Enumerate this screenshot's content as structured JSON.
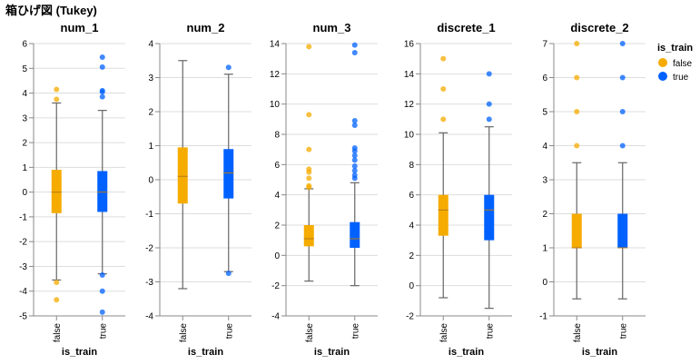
{
  "chart_data": {
    "type": "boxplot",
    "title": "箱ひげ図 (Tukey)",
    "legend": {
      "title": "is_train",
      "position": "top-right",
      "entries": [
        {
          "label": "false",
          "color": "#f5ab00"
        },
        {
          "label": "true",
          "color": "#0061ff"
        }
      ]
    },
    "xlabel": "is_train",
    "categories": [
      "false",
      "true"
    ],
    "colors": {
      "false": "#f5ab00",
      "true": "#0061ff"
    },
    "panels": [
      {
        "title": "num_1",
        "ylim": [
          -5,
          6
        ],
        "yticks": [
          -5,
          -4,
          -3,
          -2,
          -1,
          0,
          1,
          2,
          3,
          4,
          5,
          6
        ],
        "series": [
          {
            "name": "false",
            "whisker_low": -3.55,
            "q1": -0.85,
            "median": 0.0,
            "q3": 0.9,
            "whisker_high": 3.6,
            "outliers": [
              4.15,
              3.75,
              -3.65,
              -4.35
            ]
          },
          {
            "name": "true",
            "whisker_low": -3.3,
            "q1": -0.8,
            "median": 0.0,
            "q3": 0.85,
            "whisker_high": 3.3,
            "outliers": [
              5.45,
              5.05,
              4.1,
              4.05,
              3.85,
              -3.35,
              -4.0,
              -4.85
            ]
          }
        ]
      },
      {
        "title": "num_2",
        "ylim": [
          -4,
          4
        ],
        "yticks": [
          -4,
          -3,
          -2,
          -1,
          0,
          1,
          2,
          3,
          4
        ],
        "series": [
          {
            "name": "false",
            "whisker_low": -3.2,
            "q1": -0.7,
            "median": 0.1,
            "q3": 0.95,
            "whisker_high": 3.5,
            "outliers": []
          },
          {
            "name": "true",
            "whisker_low": -2.7,
            "q1": -0.55,
            "median": 0.2,
            "q3": 0.9,
            "whisker_high": 3.1,
            "outliers": [
              3.3,
              -2.75
            ]
          }
        ]
      },
      {
        "title": "num_3",
        "ylim": [
          -4,
          14
        ],
        "yticks": [
          -4,
          -2,
          0,
          2,
          4,
          6,
          8,
          10,
          12,
          14
        ],
        "series": [
          {
            "name": "false",
            "whisker_low": -1.7,
            "q1": 0.6,
            "median": 1.1,
            "q3": 2.0,
            "whisker_high": 4.4,
            "outliers": [
              13.8,
              9.3,
              7.0,
              5.7,
              5.5,
              5.1,
              4.6,
              4.5
            ]
          },
          {
            "name": "true",
            "whisker_low": -2.0,
            "q1": 0.5,
            "median": 1.1,
            "q3": 2.2,
            "whisker_high": 4.8,
            "outliers": [
              13.9,
              13.4,
              8.9,
              8.6,
              7.1,
              6.9,
              6.6,
              6.3,
              5.9,
              5.6,
              5.3,
              5.1
            ]
          }
        ]
      },
      {
        "title": "discrete_1",
        "ylim": [
          -2,
          16
        ],
        "yticks": [
          -2,
          0,
          2,
          4,
          6,
          8,
          10,
          12,
          14,
          16
        ],
        "series": [
          {
            "name": "false",
            "whisker_low": -0.8,
            "q1": 3.3,
            "median": 5.0,
            "q3": 6.0,
            "whisker_high": 10.1,
            "outliers": [
              15.0,
              13.0,
              11.0
            ]
          },
          {
            "name": "true",
            "whisker_low": -1.5,
            "q1": 3.0,
            "median": 5.0,
            "q3": 6.0,
            "whisker_high": 10.5,
            "outliers": [
              14.0,
              12.0,
              11.0
            ]
          }
        ]
      },
      {
        "title": "discrete_2",
        "ylim": [
          -1,
          7
        ],
        "yticks": [
          -1,
          0,
          1,
          2,
          3,
          4,
          5,
          6,
          7
        ],
        "series": [
          {
            "name": "false",
            "whisker_low": -0.5,
            "q1": 1.0,
            "median": 1.0,
            "q3": 2.0,
            "whisker_high": 3.5,
            "outliers": [
              7.0,
              6.0,
              5.0,
              4.0
            ]
          },
          {
            "name": "true",
            "whisker_low": -0.5,
            "q1": 1.0,
            "median": 1.0,
            "q3": 2.0,
            "whisker_high": 3.5,
            "outliers": [
              7.0,
              6.0,
              5.0,
              4.0
            ]
          }
        ]
      }
    ]
  }
}
